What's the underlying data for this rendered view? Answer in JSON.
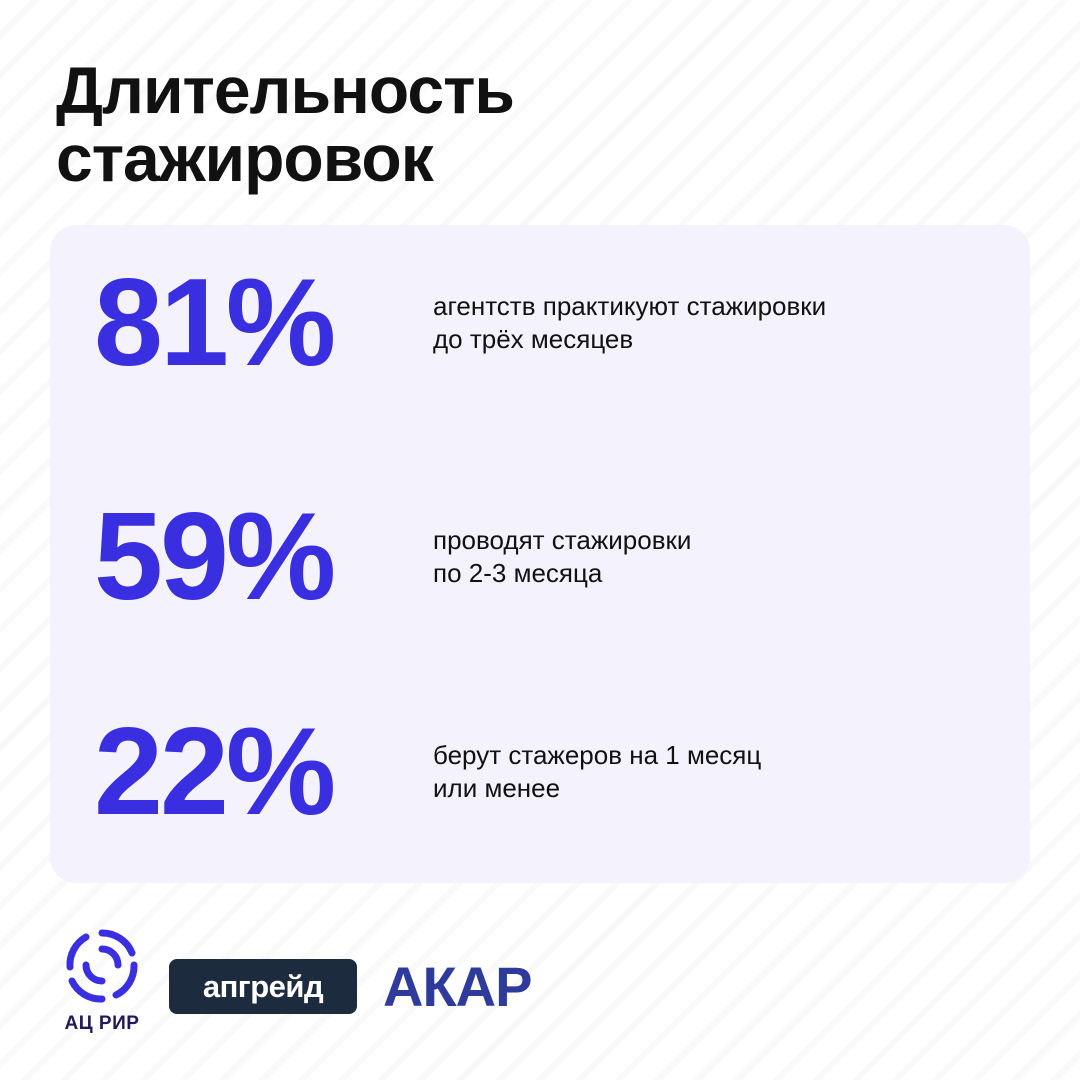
{
  "title": {
    "line1": "Длительность",
    "line2": "стажировок"
  },
  "stats": [
    {
      "value": "81%",
      "line1": "агентств практикуют стажировки",
      "line2": "до трёх месяцев"
    },
    {
      "value": "59%",
      "line1": "проводят стажировки",
      "line2": "по 2-3 месяца"
    },
    {
      "value": "22%",
      "line1": "берут стажеров на 1 месяц",
      "line2": "или менее"
    }
  ],
  "logos": {
    "acrir": {
      "icon": "swirl-logo-icon",
      "label": "АЦ РИР"
    },
    "upgrade": {
      "label": "апгрейд"
    },
    "akar": {
      "label": "АКАР"
    }
  },
  "colors": {
    "accent": "#3a2fe0",
    "card": "#f4f3fd",
    "text": "#111111",
    "upgrade_bg": "#1c2b3d",
    "akar": "#2e3b9c",
    "acrir": "#3a2fe0"
  }
}
